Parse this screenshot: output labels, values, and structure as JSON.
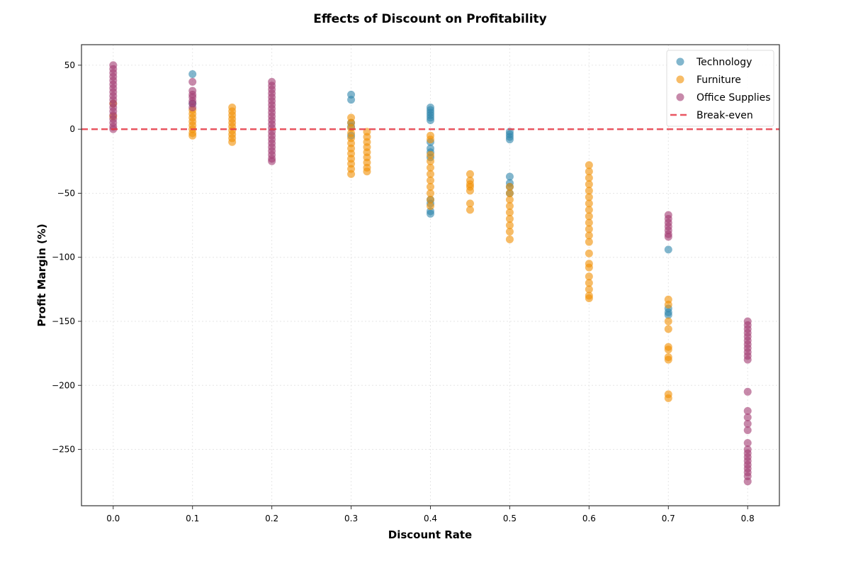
{
  "chart_data": {
    "type": "scatter",
    "title": "Effects of Discount on Profitability",
    "xlabel": "Discount Rate",
    "ylabel": "Profit Margin (%)",
    "xlim": [
      -0.04,
      0.84
    ],
    "ylim": [
      -294,
      66
    ],
    "xticks": [
      0.0,
      0.1,
      0.2,
      0.3,
      0.4,
      0.5,
      0.6,
      0.7,
      0.8
    ],
    "xtick_labels": [
      "0.0",
      "0.1",
      "0.2",
      "0.3",
      "0.4",
      "0.5",
      "0.6",
      "0.7",
      "0.8"
    ],
    "yticks": [
      50,
      0,
      -50,
      -100,
      -150,
      -200,
      -250
    ],
    "ytick_labels": [
      "50",
      "0",
      "−50",
      "−100",
      "−150",
      "−200",
      "−250"
    ],
    "grid": true,
    "legend_position": "top-right",
    "reference_line": {
      "name": "Break-even",
      "y": 0,
      "color": "#E63946",
      "style": "dashed"
    },
    "series": [
      {
        "name": "Technology",
        "color": "#2E86AB",
        "groups": [
          {
            "x": 0.1,
            "y": [
              43,
              20
            ]
          },
          {
            "x": 0.3,
            "y": [
              27,
              23,
              5,
              2,
              -5
            ]
          },
          {
            "x": 0.4,
            "y": [
              17,
              15,
              13,
              11,
              9,
              7,
              -10,
              -15,
              -18,
              -22,
              -55,
              -58,
              -64,
              -66
            ]
          },
          {
            "x": 0.5,
            "y": [
              -2,
              -4,
              -6,
              -8,
              -37,
              -42,
              -45,
              -50
            ]
          },
          {
            "x": 0.7,
            "y": [
              -94,
              -140,
              -143,
              -145
            ]
          }
        ]
      },
      {
        "name": "Furniture",
        "color": "#F18F01",
        "groups": [
          {
            "x": 0.0,
            "y": [
              20,
              10
            ]
          },
          {
            "x": 0.1,
            "y": [
              15,
              12,
              9,
              6,
              3,
              0,
              -3,
              -5
            ]
          },
          {
            "x": 0.15,
            "y": [
              17,
              14,
              11,
              8,
              5,
              2,
              -1,
              -4,
              -7,
              -10
            ]
          },
          {
            "x": 0.3,
            "y": [
              9,
              5,
              1,
              -3,
              -7,
              -11,
              -15,
              -19,
              -23,
              -27,
              -31,
              -35
            ]
          },
          {
            "x": 0.32,
            "y": [
              -2,
              -6,
              -10,
              -14,
              -18,
              -22,
              -26,
              -30,
              -33
            ]
          },
          {
            "x": 0.4,
            "y": [
              -5,
              -8,
              -20,
              -25,
              -30,
              -35,
              -40,
              -45,
              -50,
              -55,
              -60
            ]
          },
          {
            "x": 0.45,
            "y": [
              -35,
              -40,
              -43,
              -45,
              -48,
              -58,
              -63
            ]
          },
          {
            "x": 0.5,
            "y": [
              -45,
              -50,
              -55,
              -60,
              -65,
              -70,
              -75,
              -80,
              -86
            ]
          },
          {
            "x": 0.6,
            "y": [
              -28,
              -33,
              -38,
              -43,
              -48,
              -53,
              -58,
              -63,
              -68,
              -73,
              -78,
              -83,
              -88,
              -97,
              -105,
              -108,
              -115,
              -120,
              -125,
              -130,
              -132
            ]
          },
          {
            "x": 0.7,
            "y": [
              -133,
              -137,
              -150,
              -156,
              -170,
              -172,
              -178,
              -180,
              -207,
              -210
            ]
          }
        ]
      },
      {
        "name": "Office Supplies",
        "color": "#A23B72",
        "groups": [
          {
            "x": 0.0,
            "y": [
              50,
              47,
              44,
              41,
              38,
              35,
              32,
              29,
              26,
              23,
              20,
              17,
              14,
              11,
              8,
              5,
              2,
              0
            ]
          },
          {
            "x": 0.1,
            "y": [
              37,
              30,
              27,
              25,
              22,
              20,
              17
            ]
          },
          {
            "x": 0.2,
            "y": [
              37,
              34,
              31,
              28,
              25,
              22,
              19,
              16,
              13,
              10,
              7,
              4,
              1,
              -2,
              -5,
              -8,
              -11,
              -14,
              -17,
              -20,
              -23,
              -25
            ]
          },
          {
            "x": 0.7,
            "y": [
              -67,
              -70,
              -73,
              -76,
              -79,
              -82,
              -84
            ]
          },
          {
            "x": 0.8,
            "y": [
              -150,
              -153,
              -156,
              -159,
              -162,
              -165,
              -168,
              -171,
              -174,
              -177,
              -180,
              -205,
              -220,
              -225,
              -230,
              -235,
              -245,
              -250,
              -253,
              -256,
              -259,
              -262,
              -265,
              -268,
              -271,
              -275
            ]
          }
        ]
      }
    ]
  }
}
